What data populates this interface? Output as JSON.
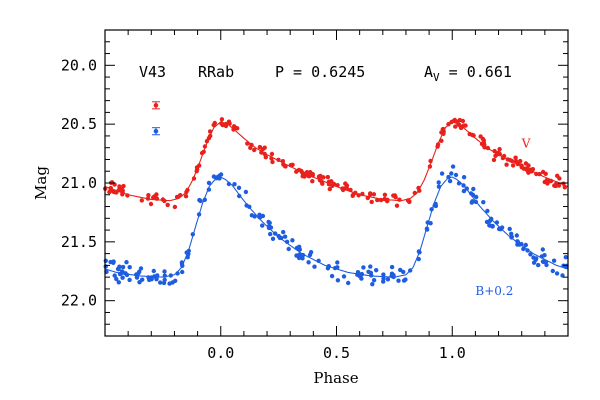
{
  "chart_data": {
    "type": "scatter",
    "title": "",
    "xlabel": "Phase",
    "ylabel": "Mag",
    "xlim": [
      -0.5,
      1.5
    ],
    "ylim": [
      22.3,
      19.7
    ],
    "y_inverted": true,
    "xticks": [
      0.0,
      0.5,
      1.0
    ],
    "xtick_labels": [
      "0.0",
      "0.5",
      "1.0"
    ],
    "yticks": [
      20.0,
      20.5,
      21.0,
      21.5,
      22.0
    ],
    "ytick_labels": [
      "20.0",
      "20.5",
      "21.0",
      "21.5",
      "22.0"
    ],
    "grid": false,
    "annotations": {
      "star": "V43",
      "type": "RRab",
      "period": "P = 0.6245",
      "amp_prefix": "A",
      "amp_sub": "V",
      "amp_value": " = 0.661"
    },
    "error_bars": [
      {
        "band": "V",
        "x": -0.28,
        "y": 20.34,
        "err": 0.03,
        "color": "#e8211c"
      },
      {
        "band": "B",
        "x": -0.28,
        "y": 20.56,
        "err": 0.03,
        "color": "#1f5de0"
      }
    ],
    "series": [
      {
        "name": "V",
        "color": "#e8211c",
        "label": "V",
        "label_pos": [
          1.3,
          20.7
        ],
        "template": {
          "phase": [
            0.0,
            0.03,
            0.06,
            0.1,
            0.15,
            0.2,
            0.3,
            0.4,
            0.5,
            0.6,
            0.7,
            0.78,
            0.82,
            0.85,
            0.88,
            0.91,
            0.94,
            0.97,
            1.0
          ],
          "mag": [
            20.48,
            20.5,
            20.55,
            20.62,
            20.7,
            20.76,
            20.86,
            20.95,
            21.03,
            21.1,
            21.14,
            21.15,
            21.13,
            21.08,
            20.97,
            20.82,
            20.66,
            20.53,
            20.48
          ]
        }
      },
      {
        "name": "B+0.2",
        "color": "#1f5de0",
        "label": "B+0.2",
        "label_pos": [
          1.1,
          21.95
        ],
        "template": {
          "phase": [
            0.0,
            0.02,
            0.05,
            0.08,
            0.12,
            0.18,
            0.25,
            0.35,
            0.45,
            0.55,
            0.65,
            0.75,
            0.8,
            0.83,
            0.86,
            0.89,
            0.92,
            0.95,
            0.98,
            1.0
          ],
          "mag": [
            20.95,
            20.97,
            21.02,
            21.1,
            21.2,
            21.33,
            21.46,
            21.6,
            21.7,
            21.76,
            21.79,
            21.8,
            21.78,
            21.72,
            21.58,
            21.38,
            21.18,
            21.03,
            20.96,
            20.95
          ]
        }
      }
    ]
  }
}
